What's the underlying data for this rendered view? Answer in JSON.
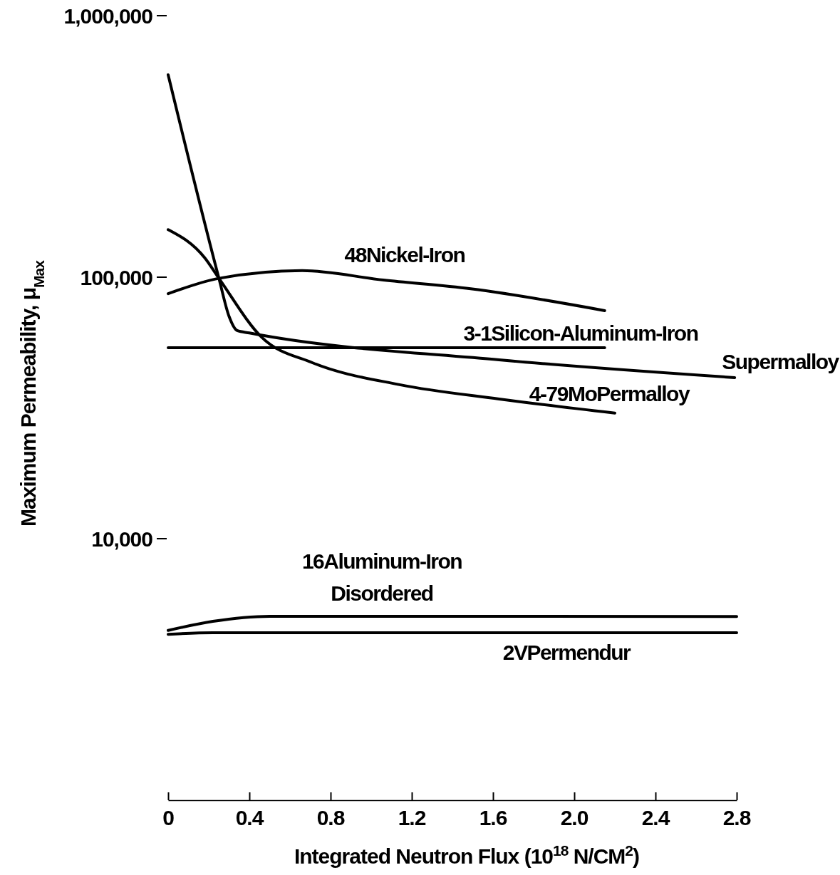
{
  "chart_data": {
    "type": "line",
    "xlabel": "Integrated Neutron Flux (10$^{18}$ N/CM$^{2}$)",
    "ylabel": "Maximum Permeability, μ$_{Max}$",
    "log": "y",
    "xlim": [
      0,
      2.8
    ],
    "ylim": [
      1000,
      1000000
    ],
    "xticks": [
      0,
      0.4,
      0.8,
      1.2,
      1.6,
      {
        "value": 2,
        "label": "2.0"
      },
      2.4,
      2.8
    ],
    "yticks": [
      {
        "value": 10000,
        "label": "10,000"
      },
      {
        "value": 100000,
        "label": "100,000"
      },
      {
        "value": 1000000,
        "label": "1,000,000"
      }
    ],
    "grid": false,
    "marker": "none",
    "line_style": "solid",
    "series": [
      {
        "name": "48Nickel-Iron",
        "color": "#000000",
        "x": [
          0,
          0.25,
          0.66,
          1.06,
          1.49,
          2.15
        ],
        "values": [
          86500,
          99000,
          106000,
          97500,
          90300,
          74500
        ]
      },
      {
        "name": "3-1Silicon-Aluminum-Iron",
        "color": "#000000",
        "x": [
          0,
          2.15
        ],
        "values": [
          53700,
          53700
        ]
      },
      {
        "name": "Supermalloy",
        "color": "#000000",
        "x": [
          0,
          0.25,
          0.3,
          0.34,
          0.4,
          1.63,
          2.79
        ],
        "values": [
          594000,
          99000,
          70800,
          62500,
          61200,
          48300,
          41300
        ]
      },
      {
        "name": "4-79MoPermalloy",
        "color": "#000000",
        "x": [
          0,
          0.18,
          0.25,
          0.46,
          0.71,
          1.14,
          1.63,
          2.2
        ],
        "values": [
          152000,
          118600,
          99000,
          59000,
          47100,
          38800,
          34200,
          30200
        ]
      },
      {
        "name": "16Aluminum-Iron\nDisordered",
        "color": "#000000",
        "x": [
          0,
          0.22,
          0.5,
          2.8
        ],
        "values": [
          4460,
          4830,
          5050,
          5040
        ]
      },
      {
        "name": "2VPermendur",
        "color": "#000000",
        "x": [
          0,
          0.22,
          2.8
        ],
        "values": [
          4310,
          4370,
          4370
        ]
      }
    ]
  }
}
